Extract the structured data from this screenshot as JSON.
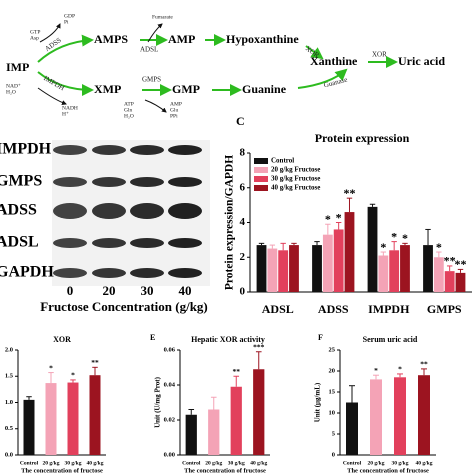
{
  "diagram": {
    "nodes": [
      "IMP",
      "AMPS",
      "AMP",
      "Hypoxanthine",
      "Xanthine",
      "Uric acid",
      "XMP",
      "GMP",
      "Guanine"
    ],
    "enzymes": [
      "ADSS",
      "ADSL",
      "XOR",
      "XOR",
      "IMPDH",
      "GMPS",
      "Guanase"
    ],
    "cofactors": [
      [
        "GTP",
        "Asp"
      ],
      [
        "GDP",
        "Pi"
      ],
      [
        "Fumarate"
      ],
      [
        "NAD⁺",
        "H₂O"
      ],
      [
        "NADH",
        "H⁺"
      ],
      [
        "ATP",
        "Gln",
        "H₂O"
      ],
      [
        "AMP",
        "Glu",
        "PPi"
      ]
    ]
  },
  "blot": {
    "proteins": [
      "IMPDH",
      "GMPS",
      "ADSS",
      "ADSL",
      "GAPDH"
    ],
    "lanes": [
      "0",
      "20",
      "30",
      "40"
    ],
    "xlabel": "Fructose Concentration (g/kg)"
  },
  "chart_data": [
    {
      "type": "bar",
      "panel": "C",
      "title": "Protein expression",
      "ylabel": "Protein expression/GAPDH",
      "categories": [
        "ADSL",
        "ADSS",
        "IMPDH",
        "GMPS"
      ],
      "series": [
        {
          "name": "Control",
          "color": "#111111",
          "values": [
            2.7,
            2.7,
            4.9,
            2.7
          ],
          "errors": [
            0.1,
            0.2,
            0.15,
            0.9
          ],
          "sig": [
            null,
            null,
            null,
            null
          ]
        },
        {
          "name": "20 g/kg Fructose",
          "color": "#f4a3b6",
          "values": [
            2.5,
            3.3,
            2.1,
            2.0
          ],
          "errors": [
            0.2,
            0.6,
            0.2,
            0.3
          ],
          "sig": [
            null,
            "*",
            "*",
            "*"
          ]
        },
        {
          "name": "30 g/kg Fructose",
          "color": "#e2405c",
          "values": [
            2.4,
            3.6,
            2.4,
            1.2
          ],
          "errors": [
            0.4,
            0.4,
            0.5,
            0.3
          ],
          "sig": [
            null,
            "*",
            "*",
            "**"
          ]
        },
        {
          "name": "40 g/kg Fructose",
          "color": "#9c1420",
          "values": [
            2.7,
            4.6,
            2.7,
            1.1
          ],
          "errors": [
            0.1,
            0.8,
            0.1,
            0.2
          ],
          "sig": [
            null,
            "**",
            "*",
            "**"
          ]
        }
      ],
      "ylim": [
        0,
        8
      ],
      "yticks": [
        0,
        2,
        4,
        6,
        8
      ],
      "legend": "top-left"
    },
    {
      "type": "bar",
      "title": "XOR",
      "xlabel": "The concentration of fructose",
      "categories": [
        "Control",
        "20 g/kg",
        "30 g/kg",
        "40 g/kg"
      ],
      "values": [
        1.05,
        1.37,
        1.38,
        1.52
      ],
      "errors": [
        0.06,
        0.2,
        0.05,
        0.15
      ],
      "sig": [
        null,
        "*",
        "*",
        "**"
      ],
      "colors": [
        "#111111",
        "#f4a3b6",
        "#e2405c",
        "#9c1420"
      ],
      "ylim": [
        0,
        2
      ],
      "yticks": [
        {
          "value": 0,
          "label": "0.0"
        },
        {
          "value": 0.5,
          "label": "0.5"
        },
        {
          "value": 1,
          "label": "1.0"
        },
        {
          "value": 1.5,
          "label": "1.5"
        },
        {
          "value": 2,
          "label": "2.0"
        }
      ]
    },
    {
      "type": "bar",
      "panel": "E",
      "title": "Hepatic XOR activity",
      "ylabel": "Unit (U/mg Prot)",
      "xlabel": "The concentration of fructose",
      "categories": [
        "Control",
        "20 g/kg",
        "30 g/kg",
        "40 g/kg"
      ],
      "values": [
        0.023,
        0.026,
        0.039,
        0.049
      ],
      "errors": [
        0.003,
        0.007,
        0.006,
        0.01
      ],
      "sig": [
        null,
        null,
        "**",
        "***"
      ],
      "colors": [
        "#111111",
        "#f4a3b6",
        "#e2405c",
        "#9c1420"
      ],
      "ylim": [
        0,
        0.06
      ],
      "yticks": [
        {
          "value": 0,
          "label": "0.00"
        },
        {
          "value": 0.02,
          "label": "0.02"
        },
        {
          "value": 0.04,
          "label": "0.04"
        },
        {
          "value": 0.06,
          "label": "0.06"
        }
      ]
    },
    {
      "type": "bar",
      "panel": "F",
      "title": "Serum uric acid",
      "ylabel": "Unit (μg/mL)",
      "xlabel": "The concentration of fructose",
      "categories": [
        "Control",
        "20 g/kg",
        "30 g/kg",
        "40 g/kg"
      ],
      "values": [
        12.5,
        18,
        18.5,
        19
      ],
      "errors": [
        4,
        1,
        0.8,
        1.5
      ],
      "sig": [
        null,
        "*",
        "*",
        "**"
      ],
      "colors": [
        "#111111",
        "#f4a3b6",
        "#e2405c",
        "#9c1420"
      ],
      "ylim": [
        0,
        25
      ],
      "yticks": [
        0,
        5,
        10,
        15,
        20,
        25
      ]
    }
  ]
}
